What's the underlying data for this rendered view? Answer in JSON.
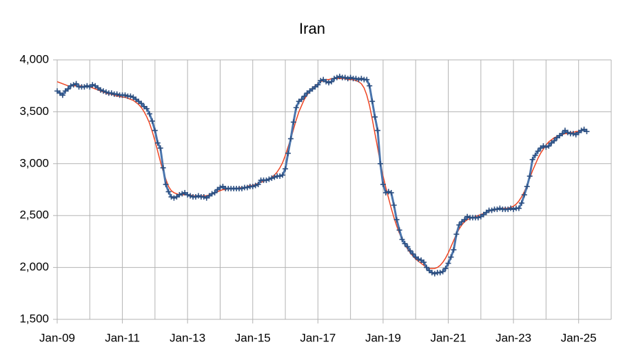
{
  "chart_data": {
    "type": "line",
    "title": "Iran",
    "x": [
      "2009-01",
      "2009-02",
      "2009-03",
      "2009-04",
      "2009-05",
      "2009-06",
      "2009-07",
      "2009-08",
      "2009-09",
      "2009-10",
      "2009-11",
      "2009-12",
      "2010-01",
      "2010-02",
      "2010-03",
      "2010-04",
      "2010-05",
      "2010-06",
      "2010-07",
      "2010-08",
      "2010-09",
      "2010-10",
      "2010-11",
      "2010-12",
      "2011-01",
      "2011-02",
      "2011-03",
      "2011-04",
      "2011-05",
      "2011-06",
      "2011-07",
      "2011-08",
      "2011-09",
      "2011-10",
      "2011-11",
      "2011-12",
      "2012-01",
      "2012-02",
      "2012-03",
      "2012-04",
      "2012-05",
      "2012-06",
      "2012-07",
      "2012-08",
      "2012-09",
      "2012-10",
      "2012-11",
      "2012-12",
      "2013-01",
      "2013-02",
      "2013-03",
      "2013-04",
      "2013-05",
      "2013-06",
      "2013-07",
      "2013-08",
      "2013-09",
      "2013-10",
      "2013-11",
      "2013-12",
      "2014-01",
      "2014-02",
      "2014-03",
      "2014-04",
      "2014-05",
      "2014-06",
      "2014-07",
      "2014-08",
      "2014-09",
      "2014-10",
      "2014-11",
      "2014-12",
      "2015-01",
      "2015-02",
      "2015-03",
      "2015-04",
      "2015-05",
      "2015-06",
      "2015-07",
      "2015-08",
      "2015-09",
      "2015-10",
      "2015-11",
      "2015-12",
      "2016-01",
      "2016-02",
      "2016-03",
      "2016-04",
      "2016-05",
      "2016-06",
      "2016-07",
      "2016-08",
      "2016-09",
      "2016-10",
      "2016-11",
      "2016-12",
      "2017-01",
      "2017-02",
      "2017-03",
      "2017-04",
      "2017-05",
      "2017-06",
      "2017-07",
      "2017-08",
      "2017-09",
      "2017-10",
      "2017-11",
      "2017-12",
      "2018-01",
      "2018-02",
      "2018-03",
      "2018-04",
      "2018-05",
      "2018-06",
      "2018-07",
      "2018-08",
      "2018-09",
      "2018-10",
      "2018-11",
      "2018-12",
      "2019-01",
      "2019-02",
      "2019-03",
      "2019-04",
      "2019-05",
      "2019-06",
      "2019-07",
      "2019-08",
      "2019-09",
      "2019-10",
      "2019-11",
      "2019-12",
      "2020-01",
      "2020-02",
      "2020-03",
      "2020-04",
      "2020-05",
      "2020-06",
      "2020-07",
      "2020-08",
      "2020-09",
      "2020-10",
      "2020-11",
      "2020-12",
      "2021-01",
      "2021-02",
      "2021-03",
      "2021-04",
      "2021-05",
      "2021-06",
      "2021-07",
      "2021-08",
      "2021-09",
      "2021-10",
      "2021-11",
      "2021-12",
      "2022-01",
      "2022-02",
      "2022-03",
      "2022-04",
      "2022-05",
      "2022-06",
      "2022-07",
      "2022-08",
      "2022-09",
      "2022-10",
      "2022-11",
      "2022-12",
      "2023-01",
      "2023-02",
      "2023-03",
      "2023-04",
      "2023-05",
      "2023-06",
      "2023-07",
      "2023-08",
      "2023-09",
      "2023-10",
      "2023-11",
      "2023-12",
      "2024-01",
      "2024-02",
      "2024-03",
      "2024-04",
      "2024-05",
      "2024-06",
      "2024-07",
      "2024-08",
      "2024-09",
      "2024-10",
      "2024-11",
      "2024-12",
      "2025-01",
      "2025-02",
      "2025-03",
      "2025-04"
    ],
    "series": [
      {
        "color": "#4a75ad",
        "marker": "+",
        "values": [
          3700,
          3680,
          3660,
          3700,
          3720,
          3750,
          3760,
          3770,
          3740,
          3740,
          3740,
          3750,
          3740,
          3760,
          3750,
          3730,
          3710,
          3700,
          3690,
          3680,
          3680,
          3670,
          3670,
          3660,
          3660,
          3660,
          3650,
          3650,
          3640,
          3620,
          3600,
          3580,
          3550,
          3530,
          3480,
          3410,
          3320,
          3200,
          3150,
          2960,
          2800,
          2730,
          2680,
          2670,
          2680,
          2700,
          2710,
          2720,
          2700,
          2690,
          2680,
          2680,
          2690,
          2680,
          2680,
          2670,
          2690,
          2710,
          2720,
          2750,
          2770,
          2780,
          2760,
          2760,
          2760,
          2760,
          2760,
          2760,
          2760,
          2770,
          2770,
          2780,
          2780,
          2790,
          2800,
          2840,
          2840,
          2840,
          2850,
          2860,
          2870,
          2880,
          2880,
          2890,
          2950,
          3100,
          3240,
          3400,
          3540,
          3600,
          3620,
          3650,
          3680,
          3700,
          3720,
          3740,
          3760,
          3800,
          3810,
          3790,
          3780,
          3790,
          3820,
          3830,
          3840,
          3830,
          3830,
          3820,
          3830,
          3820,
          3820,
          3810,
          3820,
          3810,
          3810,
          3750,
          3600,
          3450,
          3320,
          3000,
          2800,
          2720,
          2730,
          2720,
          2600,
          2460,
          2360,
          2270,
          2230,
          2200,
          2160,
          2130,
          2100,
          2080,
          2070,
          2050,
          2000,
          1970,
          1950,
          1940,
          1950,
          1950,
          1960,
          1990,
          2040,
          2100,
          2170,
          2320,
          2410,
          2440,
          2460,
          2490,
          2480,
          2480,
          2480,
          2480,
          2490,
          2510,
          2530,
          2550,
          2550,
          2560,
          2560,
          2570,
          2560,
          2560,
          2560,
          2570,
          2560,
          2570,
          2570,
          2620,
          2700,
          2780,
          2880,
          3040,
          3080,
          3120,
          3150,
          3170,
          3160,
          3170,
          3200,
          3220,
          3250,
          3270,
          3290,
          3320,
          3300,
          3290,
          3290,
          3280,
          3300,
          3320,
          3330,
          3310
        ]
      },
      {
        "color": "#ee4422",
        "values": [
          3790,
          3780,
          3770,
          3760,
          3750,
          3750,
          3750,
          3750,
          3750,
          3750,
          3740,
          3740,
          3740,
          3730,
          3720,
          3710,
          3700,
          3690,
          3680,
          3670,
          3670,
          3660,
          3650,
          3650,
          3640,
          3640,
          3630,
          3620,
          3610,
          3590,
          3570,
          3540,
          3500,
          3450,
          3390,
          3310,
          3220,
          3120,
          3020,
          2930,
          2850,
          2780,
          2740,
          2720,
          2710,
          2700,
          2700,
          2700,
          2700,
          2700,
          2690,
          2690,
          2690,
          2690,
          2690,
          2690,
          2700,
          2710,
          2720,
          2730,
          2740,
          2750,
          2750,
          2760,
          2760,
          2760,
          2760,
          2770,
          2770,
          2770,
          2780,
          2790,
          2790,
          2800,
          2810,
          2820,
          2830,
          2840,
          2850,
          2870,
          2890,
          2920,
          2960,
          3010,
          3080,
          3160,
          3240,
          3330,
          3420,
          3500,
          3560,
          3620,
          3660,
          3700,
          3730,
          3750,
          3770,
          3790,
          3800,
          3810,
          3810,
          3820,
          3820,
          3820,
          3820,
          3820,
          3820,
          3810,
          3810,
          3810,
          3800,
          3790,
          3770,
          3730,
          3660,
          3560,
          3430,
          3290,
          3150,
          3010,
          2880,
          2770,
          2670,
          2570,
          2480,
          2400,
          2330,
          2270,
          2220,
          2180,
          2140,
          2110,
          2080,
          2060,
          2040,
          2020,
          2000,
          1990,
          1990,
          1990,
          2000,
          2020,
          2050,
          2090,
          2140,
          2200,
          2260,
          2320,
          2370,
          2410,
          2440,
          2460,
          2470,
          2480,
          2490,
          2500,
          2510,
          2520,
          2530,
          2540,
          2550,
          2550,
          2560,
          2560,
          2570,
          2570,
          2570,
          2580,
          2590,
          2610,
          2640,
          2680,
          2730,
          2790,
          2860,
          2930,
          2990,
          3050,
          3100,
          3140,
          3180,
          3210,
          3230,
          3250,
          3260,
          3270,
          3280,
          3290,
          3290,
          3300,
          3300,
          3310,
          3310,
          null,
          null,
          null
        ]
      }
    ],
    "xlim": [
      "2009-01",
      "2026-01"
    ],
    "xticks": [
      {
        "value": "2009-01",
        "label": "Jan-09"
      },
      {
        "value": "2011-01",
        "label": "Jan-11"
      },
      {
        "value": "2013-01",
        "label": "Jan-13"
      },
      {
        "value": "2015-01",
        "label": "Jan-15"
      },
      {
        "value": "2017-01",
        "label": "Jan-17"
      },
      {
        "value": "2019-01",
        "label": "Jan-19"
      },
      {
        "value": "2021-01",
        "label": "Jan-21"
      },
      {
        "value": "2023-01",
        "label": "Jan-23"
      },
      {
        "value": "2025-01",
        "label": "Jan-25"
      }
    ],
    "ylim": [
      1500,
      4000
    ],
    "yticks": [
      {
        "value": 1500,
        "label": "1,500"
      },
      {
        "value": 2000,
        "label": "2,000"
      },
      {
        "value": 2500,
        "label": "2,500"
      },
      {
        "value": 3000,
        "label": "3,000"
      },
      {
        "value": 3500,
        "label": "3,500"
      },
      {
        "value": 4000,
        "label": "4,000"
      }
    ],
    "grid": true
  }
}
